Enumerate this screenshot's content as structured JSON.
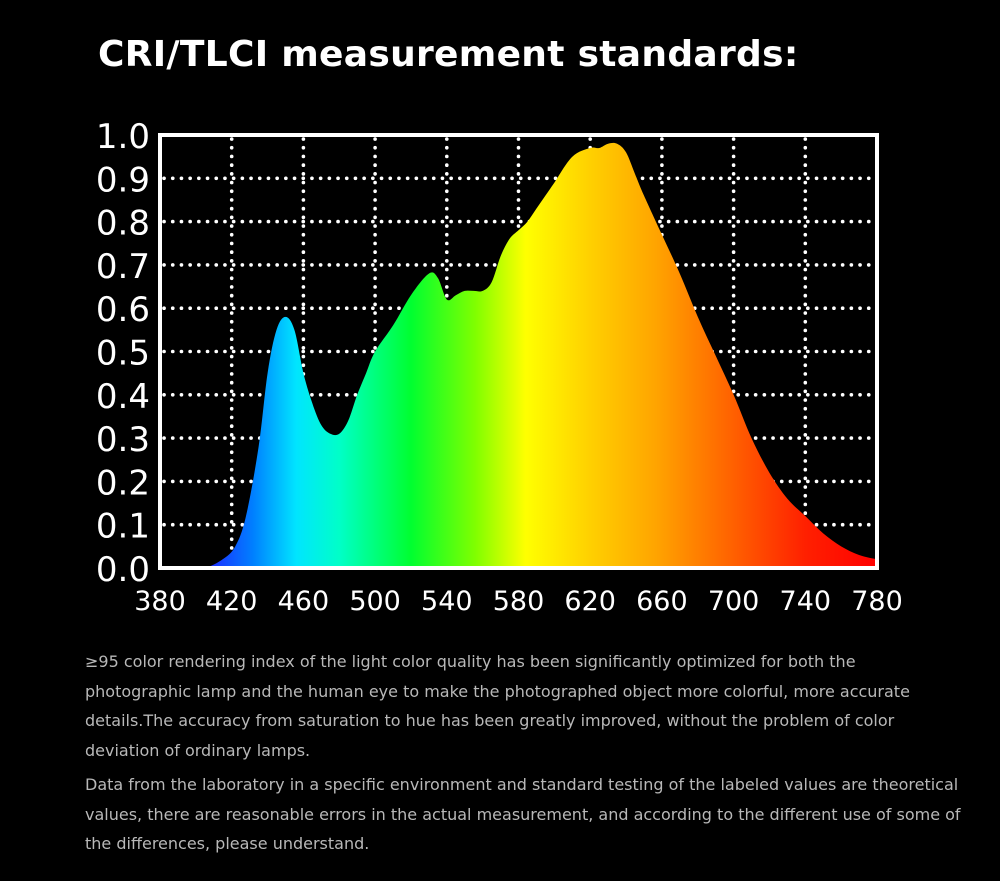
{
  "title": "CRI/TLCI measurement standards:",
  "chart_data": {
    "type": "area",
    "title": "",
    "xlabel": "",
    "ylabel": "",
    "xlim": [
      380,
      780
    ],
    "ylim": [
      0,
      1.0
    ],
    "x_ticks": [
      "380",
      "420",
      "460",
      "500",
      "540",
      "580",
      "620",
      "660",
      "700",
      "740",
      "780"
    ],
    "y_ticks": [
      "1.0",
      "0.9",
      "0.8",
      "0.7",
      "0.6",
      "0.5",
      "0.4",
      "0.3",
      "0.2",
      "0.1",
      "0.0"
    ],
    "grid": true,
    "fill": "visible-spectrum gradient",
    "series": [
      {
        "x": [
          380,
          395,
          405,
          415,
          422,
          428,
          435,
          440,
          445,
          450,
          455,
          460,
          465,
          470,
          475,
          480,
          485,
          490,
          495,
          500,
          510,
          520,
          530,
          535,
          540,
          545,
          550,
          555,
          560,
          565,
          570,
          575,
          580,
          585,
          590,
          595,
          600,
          610,
          620,
          625,
          630,
          635,
          640,
          645,
          650,
          660,
          670,
          680,
          690,
          700,
          710,
          720,
          730,
          740,
          750,
          760,
          770,
          780
        ],
        "y": [
          0.0,
          0.0,
          0.0,
          0.02,
          0.05,
          0.12,
          0.28,
          0.45,
          0.55,
          0.58,
          0.55,
          0.45,
          0.38,
          0.33,
          0.31,
          0.31,
          0.34,
          0.4,
          0.45,
          0.5,
          0.56,
          0.63,
          0.68,
          0.67,
          0.62,
          0.63,
          0.64,
          0.64,
          0.64,
          0.66,
          0.72,
          0.76,
          0.78,
          0.8,
          0.83,
          0.86,
          0.89,
          0.95,
          0.97,
          0.97,
          0.98,
          0.98,
          0.96,
          0.91,
          0.86,
          0.77,
          0.68,
          0.58,
          0.49,
          0.4,
          0.3,
          0.22,
          0.16,
          0.12,
          0.08,
          0.05,
          0.03,
          0.02
        ]
      }
    ]
  },
  "description": {
    "paragraph1": "≥95 color rendering index of the light color quality has been significantly optimized for both the photographic lamp and the human eye to make the photographed object more colorful, more accurate details.The accuracy from saturation to hue has been greatly improved, without the problem of color deviation of ordinary lamps.",
    "paragraph2": "Data from the laboratory in a specific environment and standard testing of the labeled values are theoretical values, there are reasonable errors in the actual measurement, and according to the different use of some of the differences, please understand."
  }
}
